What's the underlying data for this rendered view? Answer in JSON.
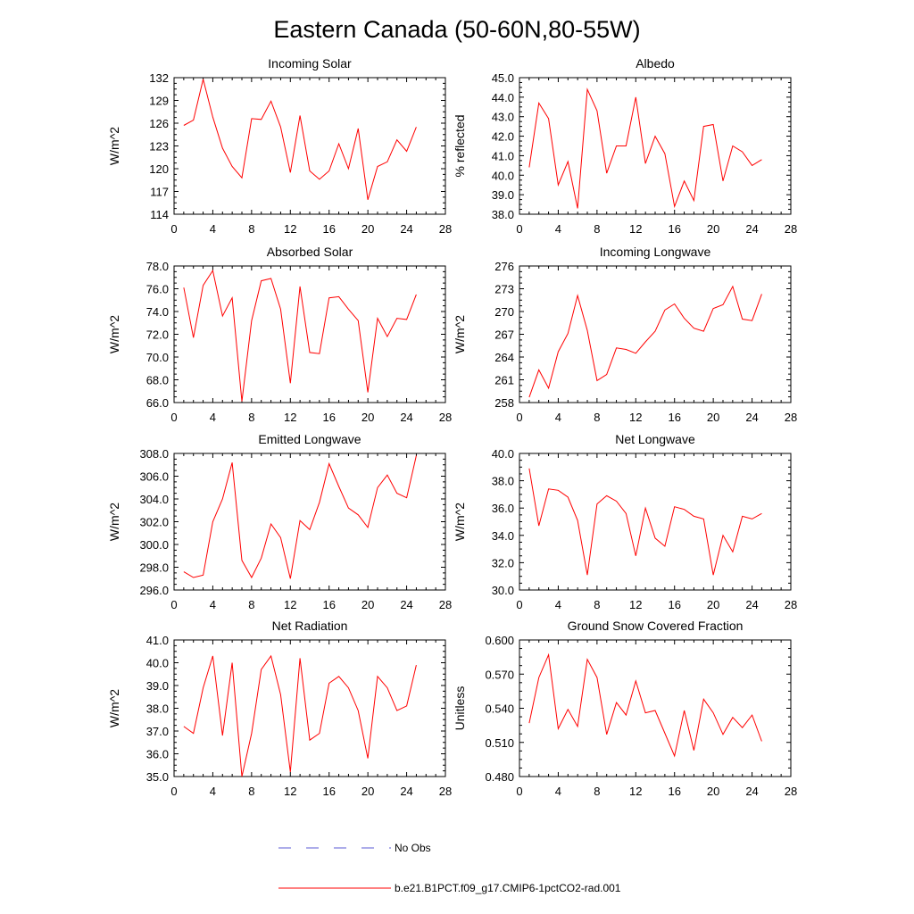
{
  "title": "Eastern Canada (50-60N,80-55W)",
  "legend": [
    {
      "label": "No Obs",
      "color": "#5b5bd6",
      "style": "dashed"
    },
    {
      "label": "b.e21.B1PCT.f09_g17.CMIP6-1pctCO2-rad.001",
      "color": "#ff0000",
      "style": "solid"
    }
  ],
  "chart_data": [
    {
      "type": "line",
      "title": "Incoming Solar",
      "ylabel": "W/m^2",
      "xlim": [
        0,
        28
      ],
      "ylim": [
        114,
        132
      ],
      "xticks": [
        "0",
        "4",
        "8",
        "12",
        "16",
        "20",
        "24",
        "28"
      ],
      "yticks": [
        "114",
        "117",
        "120",
        "123",
        "126",
        "129",
        "132"
      ],
      "series": [
        {
          "color": "#ff0000",
          "x": [
            1,
            2,
            3,
            4,
            5,
            6,
            7,
            8,
            9,
            10,
            11,
            12,
            13,
            14,
            15,
            16,
            17,
            18,
            19,
            20,
            21,
            22,
            23,
            24,
            25
          ],
          "y": [
            125.7,
            126.4,
            131.8,
            126.8,
            122.7,
            120.3,
            118.8,
            126.6,
            126.5,
            128.9,
            125.5,
            119.5,
            127.0,
            119.7,
            118.6,
            119.7,
            123.3,
            120.0,
            125.3,
            115.9,
            120.3,
            120.9,
            123.8,
            122.3,
            125.5
          ]
        }
      ]
    },
    {
      "type": "line",
      "title": "Albedo",
      "ylabel": "% reflected",
      "xlim": [
        0,
        28
      ],
      "ylim": [
        38,
        45
      ],
      "xticks": [
        "0",
        "4",
        "8",
        "12",
        "16",
        "20",
        "24",
        "28"
      ],
      "yticks": [
        "38.0",
        "39.0",
        "40.0",
        "41.0",
        "42.0",
        "43.0",
        "44.0",
        "45.0"
      ],
      "series": [
        {
          "color": "#ff0000",
          "x": [
            1,
            2,
            3,
            4,
            5,
            6,
            7,
            8,
            9,
            10,
            11,
            12,
            13,
            14,
            15,
            16,
            17,
            18,
            19,
            20,
            21,
            22,
            23,
            24,
            25
          ],
          "y": [
            40.4,
            43.7,
            42.9,
            39.5,
            40.7,
            38.3,
            44.4,
            43.3,
            40.1,
            41.5,
            41.5,
            44.0,
            40.6,
            42.0,
            41.1,
            38.4,
            39.7,
            38.7,
            42.5,
            42.6,
            39.7,
            41.5,
            41.2,
            40.5,
            40.8
          ]
        }
      ]
    },
    {
      "type": "line",
      "title": "Absorbed Solar",
      "ylabel": "W/m^2",
      "xlim": [
        0,
        28
      ],
      "ylim": [
        66,
        78
      ],
      "xticks": [
        "0",
        "4",
        "8",
        "12",
        "16",
        "20",
        "24",
        "28"
      ],
      "yticks": [
        "66.0",
        "68.0",
        "70.0",
        "72.0",
        "74.0",
        "76.0",
        "78.0"
      ],
      "series": [
        {
          "color": "#ff0000",
          "x": [
            1,
            2,
            3,
            4,
            5,
            6,
            7,
            8,
            9,
            10,
            11,
            12,
            13,
            14,
            15,
            16,
            17,
            18,
            19,
            20,
            21,
            22,
            23,
            24,
            25
          ],
          "y": [
            76.1,
            71.7,
            76.3,
            77.6,
            73.6,
            75.2,
            66.1,
            73.2,
            76.7,
            76.9,
            74.2,
            67.7,
            76.2,
            70.4,
            70.3,
            75.2,
            75.3,
            74.2,
            73.2,
            66.9,
            73.4,
            71.8,
            73.4,
            73.3,
            75.5
          ]
        }
      ]
    },
    {
      "type": "line",
      "title": "Incoming Longwave",
      "ylabel": "W/m^2",
      "xlim": [
        0,
        28
      ],
      "ylim": [
        258,
        276
      ],
      "xticks": [
        "0",
        "4",
        "8",
        "12",
        "16",
        "20",
        "24",
        "28"
      ],
      "yticks": [
        "258",
        "261",
        "264",
        "267",
        "270",
        "273",
        "276"
      ],
      "series": [
        {
          "color": "#ff0000",
          "x": [
            1,
            2,
            3,
            4,
            5,
            6,
            7,
            8,
            9,
            10,
            11,
            12,
            13,
            14,
            15,
            16,
            17,
            18,
            19,
            20,
            21,
            22,
            23,
            24,
            25
          ],
          "y": [
            258.7,
            262.3,
            259.9,
            264.7,
            267.1,
            272.1,
            267.5,
            260.9,
            261.7,
            265.2,
            265.0,
            264.5,
            266.0,
            267.4,
            270.2,
            271.0,
            269.1,
            267.8,
            267.4,
            270.4,
            270.9,
            273.3,
            269.0,
            268.8,
            272.3
          ]
        }
      ]
    },
    {
      "type": "line",
      "title": "Emitted Longwave",
      "ylabel": "W/m^2",
      "xlim": [
        0,
        28
      ],
      "ylim": [
        296,
        308
      ],
      "xticks": [
        "0",
        "4",
        "8",
        "12",
        "16",
        "20",
        "24",
        "28"
      ],
      "yticks": [
        "296.0",
        "298.0",
        "300.0",
        "302.0",
        "304.0",
        "306.0",
        "308.0"
      ],
      "series": [
        {
          "color": "#ff0000",
          "x": [
            1,
            2,
            3,
            4,
            5,
            6,
            7,
            8,
            9,
            10,
            11,
            12,
            13,
            14,
            15,
            16,
            17,
            18,
            19,
            20,
            21,
            22,
            23,
            24,
            25
          ],
          "y": [
            297.6,
            297.1,
            297.3,
            302.0,
            304.0,
            307.2,
            298.6,
            297.1,
            298.8,
            301.8,
            300.6,
            297.0,
            302.1,
            301.3,
            303.7,
            307.1,
            305.1,
            303.2,
            302.6,
            301.5,
            305.0,
            306.1,
            304.5,
            304.1,
            307.8
          ]
        }
      ]
    },
    {
      "type": "line",
      "title": "Net Longwave",
      "ylabel": "W/m^2",
      "xlim": [
        0,
        28
      ],
      "ylim": [
        30,
        40
      ],
      "xticks": [
        "0",
        "4",
        "8",
        "12",
        "16",
        "20",
        "24",
        "28"
      ],
      "yticks": [
        "30.0",
        "32.0",
        "34.0",
        "36.0",
        "38.0",
        "40.0"
      ],
      "series": [
        {
          "color": "#ff0000",
          "x": [
            1,
            2,
            3,
            4,
            5,
            6,
            7,
            8,
            9,
            10,
            11,
            12,
            13,
            14,
            15,
            16,
            17,
            18,
            19,
            20,
            21,
            22,
            23,
            24,
            25
          ],
          "y": [
            38.9,
            34.7,
            37.4,
            37.3,
            36.8,
            35.1,
            31.1,
            36.3,
            36.9,
            36.5,
            35.6,
            32.5,
            36.0,
            33.8,
            33.2,
            36.1,
            35.9,
            35.4,
            35.2,
            31.1,
            34.0,
            32.8,
            35.4,
            35.2,
            35.6
          ]
        }
      ]
    },
    {
      "type": "line",
      "title": "Net Radiation",
      "ylabel": "W/m^2",
      "xlim": [
        0,
        28
      ],
      "ylim": [
        35,
        41
      ],
      "xticks": [
        "0",
        "4",
        "8",
        "12",
        "16",
        "20",
        "24",
        "28"
      ],
      "yticks": [
        "35.0",
        "36.0",
        "37.0",
        "38.0",
        "39.0",
        "40.0",
        "41.0"
      ],
      "series": [
        {
          "color": "#ff0000",
          "x": [
            1,
            2,
            3,
            4,
            5,
            6,
            7,
            8,
            9,
            10,
            11,
            12,
            13,
            14,
            15,
            16,
            17,
            18,
            19,
            20,
            21,
            22,
            23,
            24,
            25
          ],
          "y": [
            37.2,
            36.9,
            38.9,
            40.3,
            36.8,
            40.0,
            35.0,
            36.9,
            39.7,
            40.3,
            38.6,
            35.2,
            40.2,
            36.6,
            36.9,
            39.1,
            39.4,
            38.9,
            37.9,
            35.8,
            39.4,
            38.9,
            37.9,
            38.1,
            39.9
          ]
        }
      ]
    },
    {
      "type": "line",
      "title": "Ground Snow Covered Fraction",
      "ylabel": "Unitless",
      "xlim": [
        0,
        28
      ],
      "ylim": [
        0.48,
        0.6
      ],
      "xticks": [
        "0",
        "4",
        "8",
        "12",
        "16",
        "20",
        "24",
        "28"
      ],
      "yticks": [
        "0.480",
        "0.510",
        "0.540",
        "0.570",
        "0.600"
      ],
      "series": [
        {
          "color": "#ff0000",
          "x": [
            1,
            2,
            3,
            4,
            5,
            6,
            7,
            8,
            9,
            10,
            11,
            12,
            13,
            14,
            15,
            16,
            17,
            18,
            19,
            20,
            21,
            22,
            23,
            24,
            25
          ],
          "y": [
            0.527,
            0.567,
            0.587,
            0.522,
            0.539,
            0.524,
            0.583,
            0.567,
            0.517,
            0.545,
            0.534,
            0.564,
            0.536,
            0.538,
            0.518,
            0.498,
            0.538,
            0.503,
            0.548,
            0.536,
            0.517,
            0.532,
            0.523,
            0.534,
            0.511
          ]
        }
      ]
    }
  ]
}
